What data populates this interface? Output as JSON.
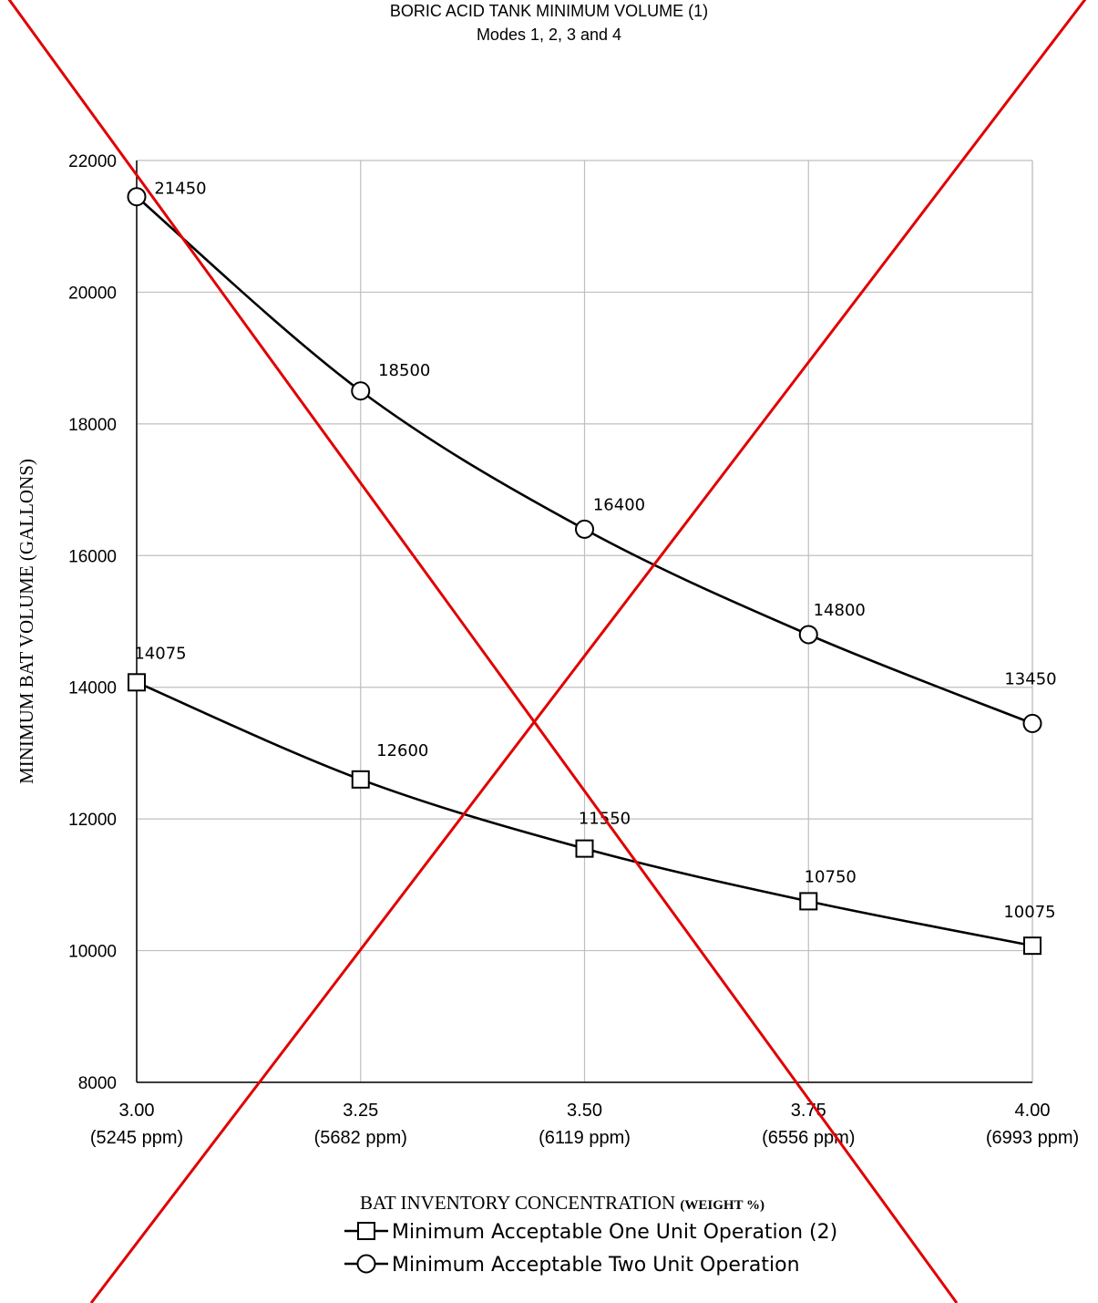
{
  "chart_data": {
    "type": "line",
    "title": "BORIC ACID TANK MINIMUM VOLUME (1)",
    "subtitle": "Modes 1, 2, 3 and 4",
    "xlabel": "BAT INVENTORY CONCENTRATION",
    "xlabel_unit": "(WEIGHT %)",
    "ylabel": "MINIMUM BAT VOLUME (GALLONS)",
    "x": [
      3.0,
      3.25,
      3.5,
      3.75,
      4.0
    ],
    "x_tick_labels": [
      "3.00",
      "3.25",
      "3.50",
      "3.75",
      "4.00"
    ],
    "x_tick_sublabels": [
      "(5245 ppm)",
      "(5682 ppm)",
      "(6119 ppm)",
      "(6556 ppm)",
      "(6993 ppm)"
    ],
    "xlim": [
      3.0,
      4.0
    ],
    "ylim": [
      8000,
      22000
    ],
    "y_ticks": [
      8000,
      10000,
      12000,
      14000,
      16000,
      18000,
      20000,
      22000
    ],
    "grid": true,
    "legend_position": "bottom",
    "series": [
      {
        "name": "Minimum Acceptable One Unit Operation (2)",
        "marker": "square",
        "values": [
          14075,
          12600,
          11550,
          10750,
          10075
        ],
        "data_labels": [
          "14075",
          "12600",
          "11550",
          "10750",
          "10075"
        ]
      },
      {
        "name": "Minimum Acceptable Two Unit Operation",
        "marker": "circle",
        "values": [
          21450,
          18500,
          16400,
          14800,
          13450
        ],
        "data_labels": [
          "21450",
          "18500",
          "16400",
          "14800",
          "13450"
        ]
      }
    ],
    "overlay": {
      "type": "cross-out",
      "color": "#e00000"
    },
    "colors": {
      "series_line": "#000000",
      "grid": "#bfbfbf",
      "cross": "#e00000"
    }
  }
}
